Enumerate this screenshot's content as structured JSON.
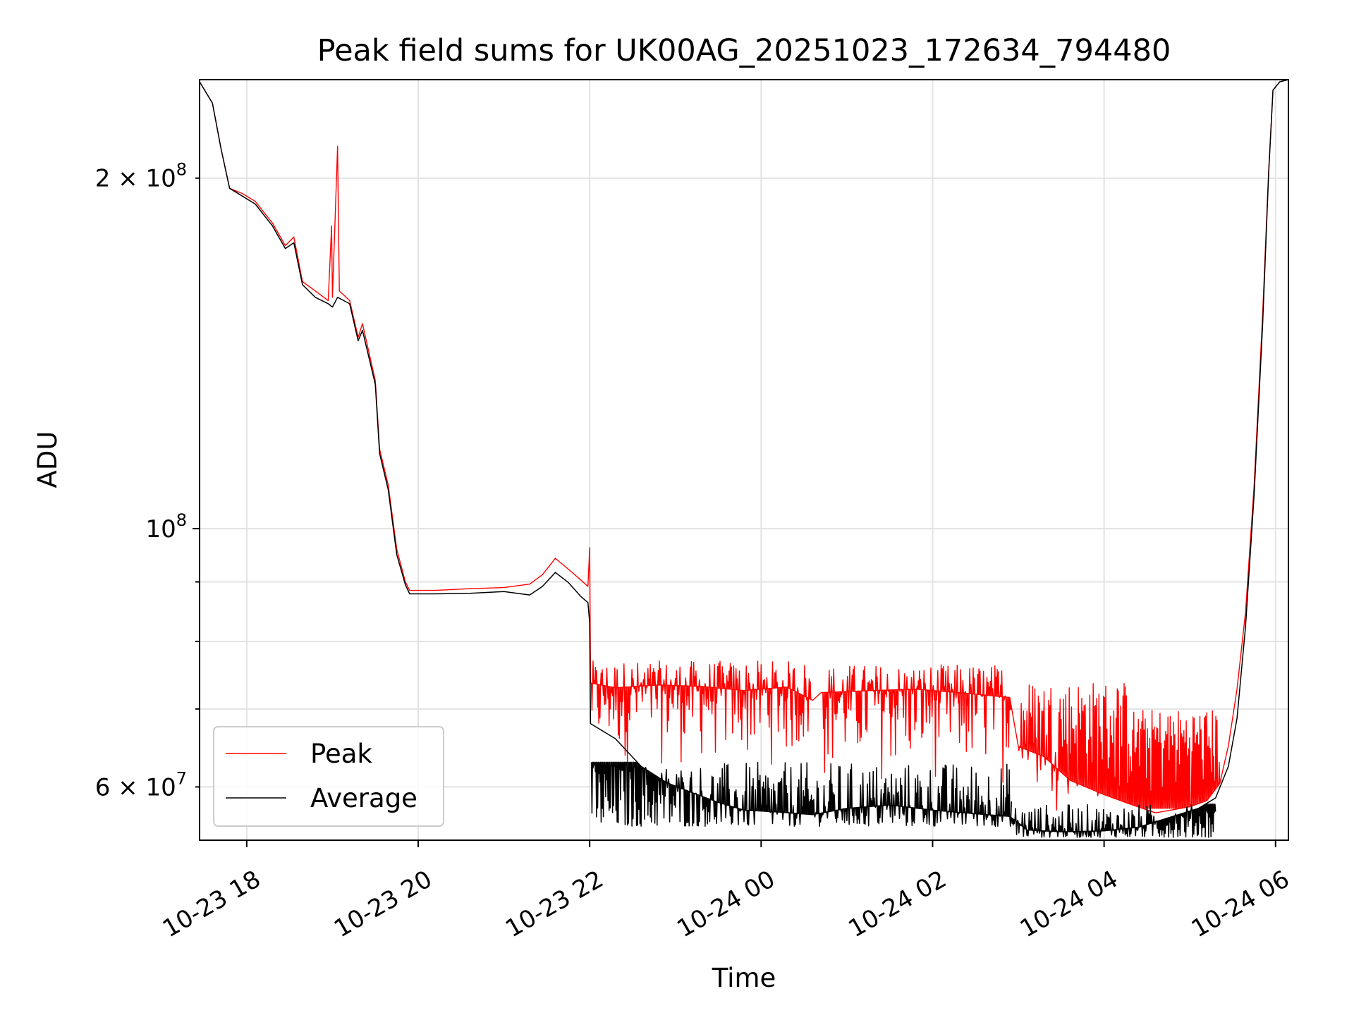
{
  "chart_data": {
    "type": "line",
    "title": "Peak field sums for UK00AG_20251023_172634_794480",
    "xlabel": "Time",
    "ylabel": "ADU",
    "yscale": "log",
    "grid": true,
    "legend_position": "lower-left",
    "x_range_hours": [
      17.45,
      30.15
    ],
    "ylim": [
      54000000,
      243000000
    ],
    "x_ticks": [
      {
        "label": "10-23 18",
        "hour": 18
      },
      {
        "label": "10-23 20",
        "hour": 20
      },
      {
        "label": "10-23 22",
        "hour": 22
      },
      {
        "label": "10-24 00",
        "hour": 24
      },
      {
        "label": "10-24 02",
        "hour": 26
      },
      {
        "label": "10-24 04",
        "hour": 28
      },
      {
        "label": "10-24 06",
        "hour": 30
      }
    ],
    "y_major_ticks": [
      {
        "value": 100000000,
        "mantissa": "",
        "base": "10",
        "exp": "8"
      }
    ],
    "y_minor_ticks": [
      {
        "value": 60000000,
        "mantissa": "6",
        "base": "10",
        "exp": "7",
        "labeled": true
      },
      {
        "value": 70000000,
        "labeled": false
      },
      {
        "value": 80000000,
        "labeled": false
      },
      {
        "value": 90000000,
        "labeled": false
      },
      {
        "value": 200000000,
        "mantissa": "2",
        "base": "10",
        "exp": "8",
        "labeled": true
      }
    ],
    "series": [
      {
        "name": "Peak",
        "color": "#ff0000",
        "points": [
          [
            17.45,
            242000000
          ],
          [
            17.6,
            232000000
          ],
          [
            17.7,
            212000000
          ],
          [
            17.8,
            196000000
          ],
          [
            17.95,
            194000000
          ],
          [
            18.1,
            191000000
          ],
          [
            18.3,
            183000000
          ],
          [
            18.45,
            175000000
          ],
          [
            18.55,
            178000000
          ],
          [
            18.65,
            163000000
          ],
          [
            18.8,
            160000000
          ],
          [
            18.95,
            157000000
          ],
          [
            18.99,
            182000000
          ],
          [
            19.0,
            158000000
          ],
          [
            19.06,
            213000000
          ],
          [
            19.08,
            160000000
          ],
          [
            19.2,
            157000000
          ],
          [
            19.3,
            146000000
          ],
          [
            19.35,
            150000000
          ],
          [
            19.5,
            134000000
          ],
          [
            19.55,
            117000000
          ],
          [
            19.65,
            109000000
          ],
          [
            19.75,
            96000000
          ],
          [
            19.85,
            90000000
          ],
          [
            19.9,
            88500000
          ],
          [
            20.2,
            88500000
          ],
          [
            20.6,
            88800000
          ],
          [
            21.0,
            89000000
          ],
          [
            21.3,
            89600000
          ],
          [
            21.45,
            91300000
          ],
          [
            21.6,
            94300000
          ],
          [
            21.75,
            92300000
          ],
          [
            21.9,
            90300000
          ],
          [
            21.98,
            89200000
          ],
          [
            22.0,
            96300000
          ],
          [
            22.01,
            73700000
          ],
          [
            22.3,
            73000000
          ],
          [
            22.8,
            73400000
          ],
          [
            23.3,
            73200000
          ],
          [
            23.8,
            72600000
          ],
          [
            24.3,
            73100000
          ],
          [
            24.6,
            71200000
          ],
          [
            24.7,
            72300000
          ],
          [
            25.3,
            72600000
          ],
          [
            25.8,
            72800000
          ],
          [
            26.4,
            72200000
          ],
          [
            26.9,
            71600000
          ],
          [
            27.0,
            65000000
          ],
          [
            27.3,
            63700000
          ],
          [
            27.6,
            60800000
          ],
          [
            28.0,
            59100000
          ],
          [
            28.3,
            58000000
          ],
          [
            28.6,
            57000000
          ],
          [
            29.0,
            57700000
          ],
          [
            29.2,
            58400000
          ],
          [
            29.35,
            60400000
          ],
          [
            29.45,
            65100000
          ],
          [
            29.55,
            72800000
          ],
          [
            29.65,
            84800000
          ],
          [
            29.75,
            109000000
          ],
          [
            29.85,
            153000000
          ],
          [
            29.92,
            203000000
          ],
          [
            29.97,
            238000000
          ],
          [
            30.05,
            242000000
          ],
          [
            30.15,
            243000000
          ]
        ]
      },
      {
        "name": "Average",
        "color": "#000000",
        "points": [
          [
            17.45,
            242000000
          ],
          [
            17.6,
            232000000
          ],
          [
            17.7,
            212000000
          ],
          [
            17.8,
            196000000
          ],
          [
            17.95,
            193000000
          ],
          [
            18.1,
            190000000
          ],
          [
            18.3,
            182000000
          ],
          [
            18.45,
            174000000
          ],
          [
            18.55,
            176000000
          ],
          [
            18.65,
            162000000
          ],
          [
            18.8,
            158000000
          ],
          [
            18.95,
            156000000
          ],
          [
            19.0,
            155000000
          ],
          [
            19.06,
            158000000
          ],
          [
            19.2,
            156000000
          ],
          [
            19.3,
            145000000
          ],
          [
            19.35,
            148000000
          ],
          [
            19.5,
            133000000
          ],
          [
            19.55,
            116000000
          ],
          [
            19.65,
            108000000
          ],
          [
            19.75,
            95000000
          ],
          [
            19.85,
            89500000
          ],
          [
            19.9,
            87900000
          ],
          [
            20.2,
            87900000
          ],
          [
            20.6,
            88000000
          ],
          [
            21.0,
            88300000
          ],
          [
            21.3,
            87700000
          ],
          [
            21.45,
            89200000
          ],
          [
            21.6,
            91700000
          ],
          [
            21.75,
            89900000
          ],
          [
            21.9,
            87400000
          ],
          [
            21.98,
            86400000
          ],
          [
            22.0,
            83000000
          ],
          [
            22.01,
            68000000
          ],
          [
            22.3,
            66000000
          ],
          [
            22.6,
            62500000
          ],
          [
            22.9,
            60500000
          ],
          [
            23.2,
            59300000
          ],
          [
            23.5,
            58200000
          ],
          [
            23.8,
            57300000
          ],
          [
            24.2,
            57100000
          ],
          [
            24.6,
            56800000
          ],
          [
            25.0,
            57500000
          ],
          [
            25.5,
            57900000
          ],
          [
            26.0,
            57300000
          ],
          [
            26.5,
            56900000
          ],
          [
            26.9,
            56600000
          ],
          [
            27.0,
            55900000
          ],
          [
            27.1,
            55100000
          ],
          [
            27.5,
            54900000
          ],
          [
            28.0,
            55000000
          ],
          [
            28.4,
            55400000
          ],
          [
            28.8,
            56600000
          ],
          [
            29.1,
            57500000
          ],
          [
            29.3,
            58700000
          ],
          [
            29.45,
            62500000
          ],
          [
            29.55,
            68700000
          ],
          [
            29.65,
            82400000
          ],
          [
            29.75,
            107000000
          ],
          [
            29.85,
            150000000
          ],
          [
            29.92,
            202000000
          ],
          [
            29.97,
            238000000
          ],
          [
            30.05,
            242000000
          ],
          [
            30.15,
            243000000
          ]
        ]
      }
    ],
    "noise_bands": [
      {
        "series": "Peak",
        "start": 22.02,
        "end": 24.58,
        "low": 62000000,
        "high": 77000000
      },
      {
        "series": "Peak",
        "start": 24.72,
        "end": 26.92,
        "low": 60000000,
        "high": 76500000
      },
      {
        "series": "Peak",
        "start": 27.0,
        "end": 28.3,
        "low": 57000000,
        "high": 74000000
      },
      {
        "series": "Peak",
        "start": 28.3,
        "end": 29.35,
        "low": 57500000,
        "high": 70000000
      },
      {
        "series": "Average",
        "start": 22.02,
        "end": 26.92,
        "low": 55500000,
        "high": 63000000
      },
      {
        "series": "Average",
        "start": 26.92,
        "end": 29.3,
        "low": 54300000,
        "high": 58000000
      }
    ]
  }
}
